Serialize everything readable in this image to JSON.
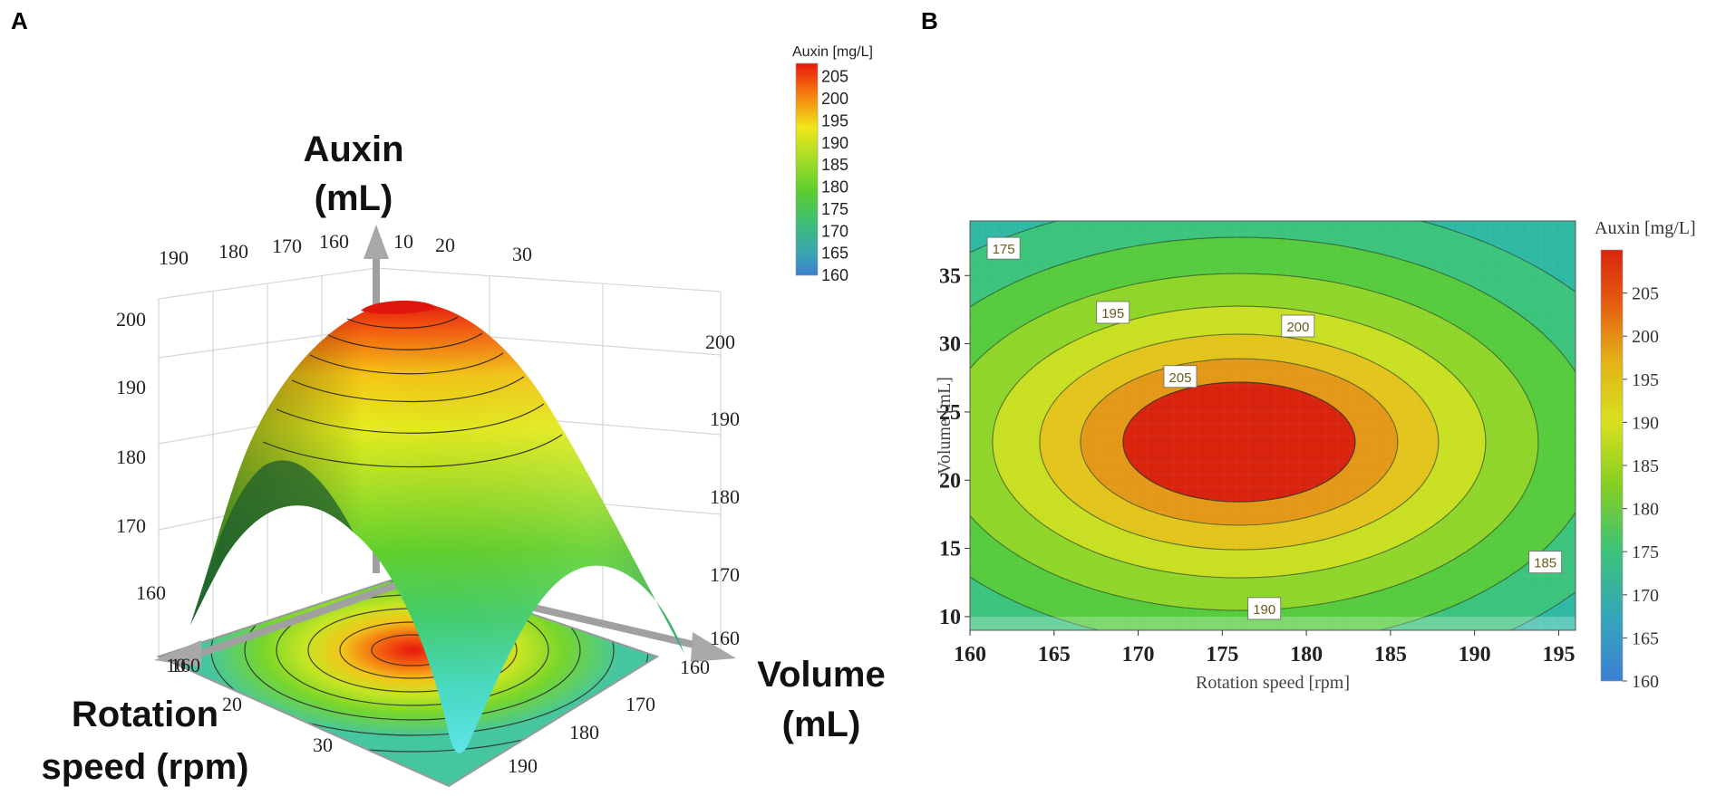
{
  "panels": {
    "a": {
      "letter": "A"
    },
    "b": {
      "letter": "B"
    }
  },
  "chart_data": [
    {
      "type": "surface",
      "panel": "A",
      "z_label_line1": "Auxin",
      "z_label_line2": "(mL)",
      "x_label_line1": "Rotation",
      "x_label_line2": "speed (rpm)",
      "y_label_line1": "Volume",
      "y_label_line2": "(mL)",
      "top_left_ticks": [
        "190",
        "180",
        "170",
        "160"
      ],
      "top_right_ticks": [
        "10",
        "20",
        "30"
      ],
      "left_z_ticks": [
        "200",
        "190",
        "180",
        "170",
        "160"
      ],
      "right_z_ticks": [
        "200",
        "190",
        "180",
        "170",
        "160"
      ],
      "front_left_ticks": [
        "10",
        "20",
        "30"
      ],
      "front_right_ticks": [
        "160",
        "170",
        "180",
        "190"
      ],
      "colorbar": {
        "title": "Auxin [mg/L]",
        "ticks": [
          "205",
          "200",
          "195",
          "190",
          "185",
          "180",
          "175",
          "170",
          "165",
          "160"
        ],
        "range": [
          160,
          208
        ]
      },
      "peak_value": 208
    },
    {
      "type": "contour",
      "panel": "B",
      "xlabel": "Rotation speed [rpm]",
      "ylabel": "Volume [mL]",
      "xlim": [
        160,
        196
      ],
      "ylim": [
        9,
        39
      ],
      "xticks": [
        160,
        165,
        170,
        175,
        180,
        185,
        190,
        195
      ],
      "yticks": [
        10,
        15,
        20,
        25,
        30,
        35
      ],
      "x_tick_labels": [
        "160",
        "165",
        "170",
        "175",
        "180",
        "185",
        "190",
        "195"
      ],
      "y_tick_labels": [
        "10",
        "15",
        "20",
        "25",
        "30",
        "35"
      ],
      "center": {
        "rotation": 176,
        "volume": 22.8,
        "value": 208
      },
      "contour_levels": [
        205,
        200,
        195,
        190,
        185,
        180,
        175,
        170
      ],
      "contour_labels": [
        {
          "text": "175",
          "rotation": 162,
          "volume": 37
        },
        {
          "text": "195",
          "rotation": 168.5,
          "volume": 32.3
        },
        {
          "text": "200",
          "rotation": 179.5,
          "volume": 31.3
        },
        {
          "text": "205",
          "rotation": 172.5,
          "volume": 27.6
        },
        {
          "text": "185",
          "rotation": 194.2,
          "volume": 14
        },
        {
          "text": "190",
          "rotation": 177.5,
          "volume": 10.6
        }
      ],
      "colorbar": {
        "title": "Auxin [mg/L]",
        "ticks": [
          "205",
          "200",
          "195",
          "190",
          "185",
          "180",
          "175",
          "170",
          "165",
          "160"
        ],
        "range": [
          160,
          210
        ]
      }
    }
  ]
}
